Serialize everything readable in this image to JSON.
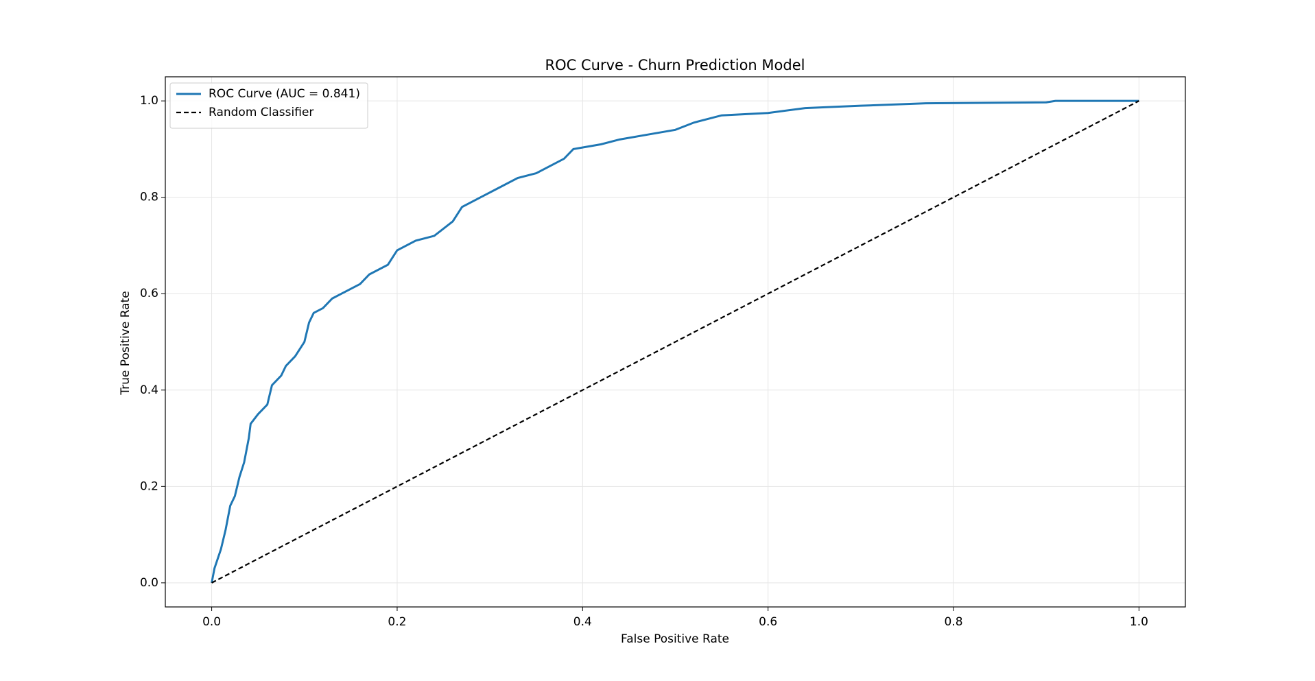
{
  "chart_data": {
    "type": "line",
    "title": "ROC Curve - Churn Prediction Model",
    "x_label": "False Positive Rate",
    "y_label": "True Positive Rate",
    "xlim": [
      -0.05,
      1.05
    ],
    "ylim": [
      -0.05,
      1.05
    ],
    "xticks": [
      {
        "value": 0,
        "label": "0.0"
      },
      0.2,
      0.4,
      0.6,
      0.8,
      {
        "value": 1,
        "label": "1.0"
      }
    ],
    "yticks": [
      {
        "value": 0,
        "label": "0.0"
      },
      0.2,
      0.4,
      0.6,
      0.8,
      {
        "value": 1,
        "label": "1.0"
      }
    ],
    "grid": true,
    "legend": "upper left",
    "series": [
      {
        "name": "ROC Curve (AUC = 0.841)",
        "color": "#1f77b4",
        "style": "solid",
        "x": [
          0,
          0.003,
          0.01,
          0.015,
          0.02,
          0.025,
          0.03,
          0.035,
          0.04,
          0.042,
          0.05,
          0.06,
          0.065,
          0.075,
          0.08,
          0.09,
          0.1,
          0.105,
          0.11,
          0.12,
          0.13,
          0.14,
          0.16,
          0.17,
          0.19,
          0.2,
          0.22,
          0.24,
          0.26,
          0.27,
          0.29,
          0.31,
          0.33,
          0.35,
          0.38,
          0.39,
          0.42,
          0.44,
          0.47,
          0.5,
          0.52,
          0.55,
          0.6,
          0.64,
          0.7,
          0.77,
          0.9,
          0.91,
          1.0
        ],
        "values": [
          0,
          0.03,
          0.07,
          0.11,
          0.16,
          0.18,
          0.22,
          0.25,
          0.3,
          0.33,
          0.35,
          0.37,
          0.41,
          0.43,
          0.45,
          0.47,
          0.5,
          0.54,
          0.56,
          0.57,
          0.59,
          0.6,
          0.62,
          0.64,
          0.66,
          0.69,
          0.71,
          0.72,
          0.75,
          0.78,
          0.8,
          0.82,
          0.84,
          0.85,
          0.88,
          0.9,
          0.91,
          0.92,
          0.93,
          0.94,
          0.955,
          0.97,
          0.975,
          0.985,
          0.99,
          0.995,
          0.997,
          1.0,
          1.0
        ]
      },
      {
        "name": "Random Classifier",
        "color": "#000000",
        "style": "dashed",
        "x": [
          0,
          1
        ],
        "values": [
          0,
          1
        ]
      }
    ]
  }
}
